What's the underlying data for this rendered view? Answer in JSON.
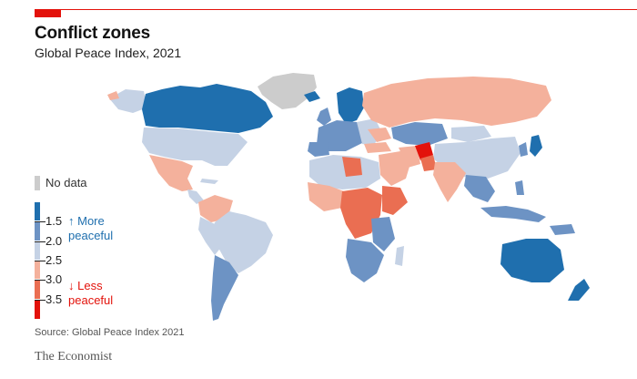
{
  "header": {
    "title": "Conflict zones",
    "subtitle": "Global Peace Index, 2021"
  },
  "legend": {
    "no_data_label": "No data",
    "no_data_color": "#cccccc",
    "ticks": [
      "1.5",
      "2.0",
      "2.5",
      "3.0",
      "3.5"
    ],
    "more_peaceful": "↑ More peaceful",
    "less_peaceful": "↓ Less peaceful",
    "more_color": "#1f6fae",
    "less_color": "#e3120b",
    "bands": [
      {
        "range": "< 1.5",
        "color": "#1f6fae"
      },
      {
        "range": "1.5–2.0",
        "color": "#6d93c4"
      },
      {
        "range": "2.0–2.5",
        "color": "#c5d2e5"
      },
      {
        "range": "2.5–3.0",
        "color": "#f4b19c"
      },
      {
        "range": "3.0–3.5",
        "color": "#ea6e52"
      },
      {
        "range": "> 3.5",
        "color": "#e3120b"
      }
    ]
  },
  "footer": {
    "source": "Source: Global Peace Index 2021",
    "brand": "The Economist"
  },
  "colors": {
    "accent_red": "#e3120b",
    "no_data": "#cccccc"
  }
}
